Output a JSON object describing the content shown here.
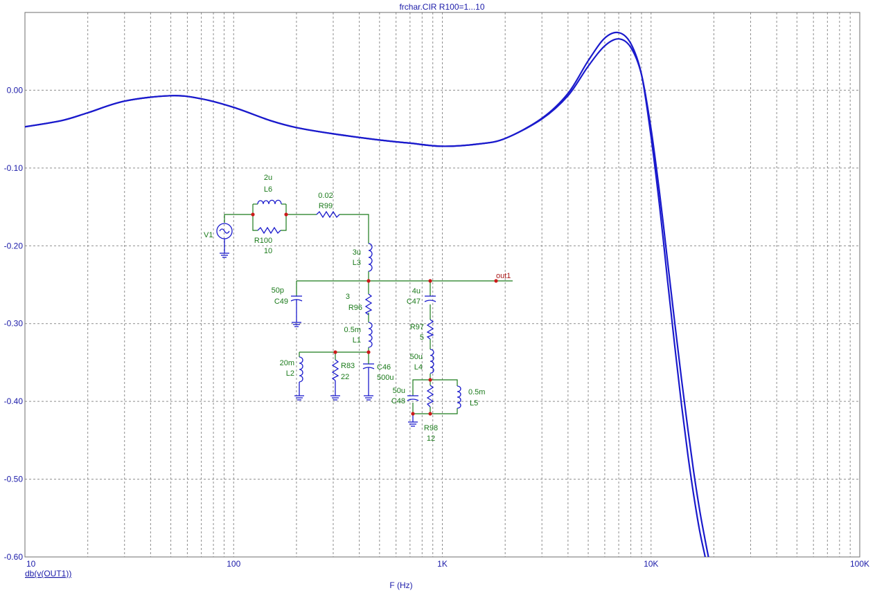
{
  "window_title": "frchar.CIR R100=1...10",
  "trace_label": "db(v(OUT1))",
  "chart_data": {
    "type": "line",
    "title": "frchar.CIR R100=1...10",
    "xlabel": "F (Hz)",
    "ylabel": "db(v(OUT1))",
    "xscale": "log",
    "xlim": [
      10,
      100000
    ],
    "ylim": [
      -0.6,
      0.1
    ],
    "x_ticks": [
      {
        "value": 10,
        "label": "10"
      },
      {
        "value": 100,
        "label": "100"
      },
      {
        "value": 1000,
        "label": "1K"
      },
      {
        "value": 10000,
        "label": "10K"
      },
      {
        "value": 100000,
        "label": "100K"
      }
    ],
    "y_ticks": [
      {
        "value": 0.0,
        "label": "0.00"
      },
      {
        "value": -0.1,
        "label": "-0.10"
      },
      {
        "value": -0.2,
        "label": "-0.20"
      },
      {
        "value": -0.3,
        "label": "-0.30"
      },
      {
        "value": -0.4,
        "label": "-0.40"
      },
      {
        "value": -0.5,
        "label": "-0.50"
      },
      {
        "value": -0.6,
        "label": "-0.60"
      }
    ],
    "grid": true,
    "color": "#1a1acc",
    "series": [
      {
        "x": [
          10,
          15,
          20,
          30,
          50,
          70,
          100,
          150,
          200,
          300,
          500,
          700,
          1000,
          1500,
          2000,
          3000,
          4000,
          5000,
          6000,
          7000,
          8000,
          9000,
          10000,
          11000,
          12000,
          13000,
          14000,
          15000,
          16000,
          17000,
          18000,
          18500
        ],
        "y": [
          -0.047,
          -0.039,
          -0.029,
          -0.014,
          -0.007,
          -0.011,
          -0.022,
          -0.039,
          -0.048,
          -0.056,
          -0.064,
          -0.068,
          -0.072,
          -0.069,
          -0.062,
          -0.036,
          -0.004,
          0.038,
          0.067,
          0.074,
          0.06,
          0.02,
          -0.06,
          -0.15,
          -0.245,
          -0.33,
          -0.405,
          -0.468,
          -0.52,
          -0.563,
          -0.595,
          -0.61
        ]
      },
      {
        "x": [
          10,
          15,
          20,
          30,
          50,
          70,
          100,
          150,
          200,
          300,
          500,
          700,
          1000,
          1500,
          2000,
          3000,
          4000,
          5000,
          6000,
          7000,
          8000,
          9000,
          10000,
          11000,
          12000,
          13000,
          14000,
          15000,
          16000,
          17000,
          18000,
          19000
        ],
        "y": [
          -0.047,
          -0.039,
          -0.029,
          -0.014,
          -0.007,
          -0.011,
          -0.022,
          -0.039,
          -0.048,
          -0.056,
          -0.064,
          -0.068,
          -0.072,
          -0.069,
          -0.062,
          -0.037,
          -0.007,
          0.031,
          0.057,
          0.066,
          0.055,
          0.02,
          -0.05,
          -0.133,
          -0.22,
          -0.3,
          -0.372,
          -0.435,
          -0.49,
          -0.536,
          -0.573,
          -0.605
        ]
      }
    ]
  },
  "schematic": {
    "labels": {
      "l6_val": "2u",
      "l6_name": "L6",
      "r99_val": "0.02",
      "r99_name": "R99",
      "v1_name": "V1",
      "r100_name": "R100",
      "r100_val": "10",
      "l3_val": "3u",
      "l3_name": "L3",
      "c49_val": "50p",
      "c49_name": "C49",
      "r96_val": "3",
      "r96_name": "R96",
      "c47_val": "4u",
      "c47_name": "C47",
      "out_node": "out1",
      "r97_name": "R97",
      "r97_val": "5",
      "l1_val": "0.5m",
      "l1_name": "L1",
      "l4_val": "50u",
      "l4_name": "L4",
      "l2_val": "20m",
      "l2_name": "L2",
      "r83_name": "R83",
      "r83_val": "22",
      "c46_name": "C46",
      "c46_val": "500u",
      "c48_val": "50u",
      "c48_name": "C48",
      "l5_val": "0.5m",
      "l5_name": "L5",
      "r98_name": "R98",
      "r98_val": "12"
    },
    "wire_color": "#1a7a1a",
    "component_color": "#1a1acc",
    "node_color": "#cc1a1a"
  }
}
